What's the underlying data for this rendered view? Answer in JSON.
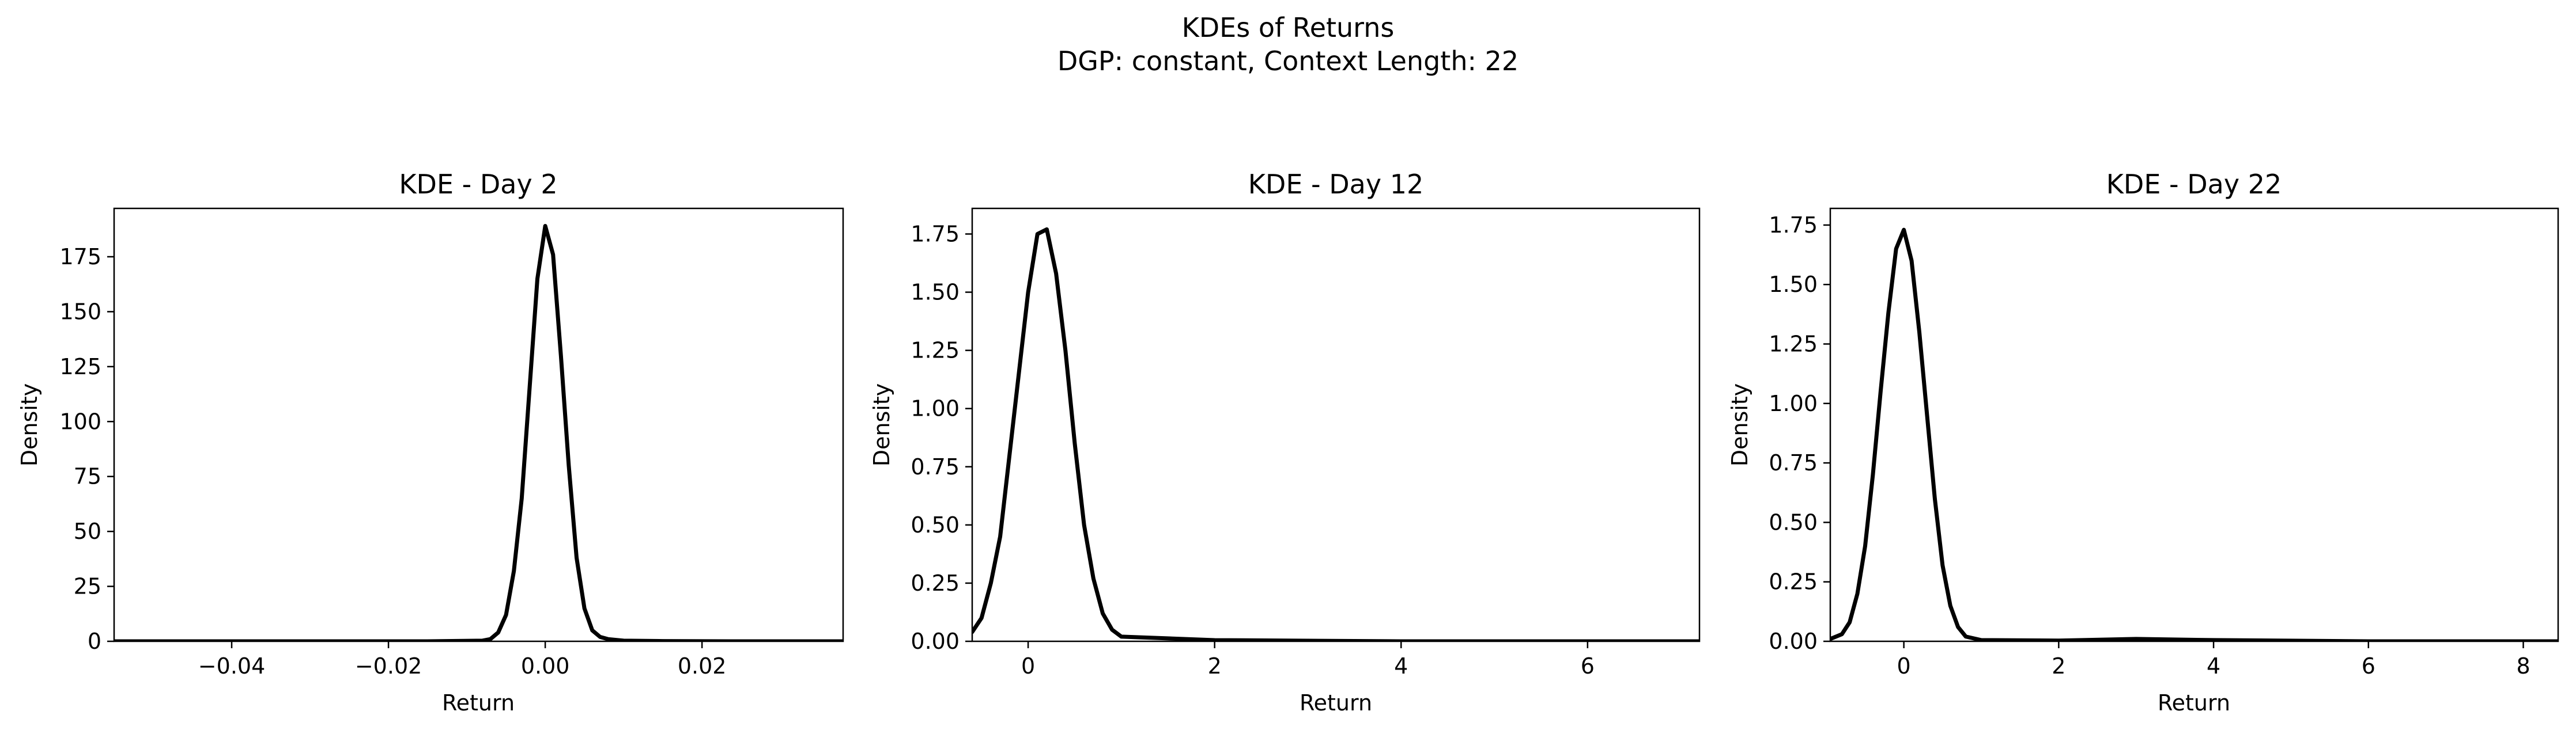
{
  "figure": {
    "title_line1": "KDEs of Returns",
    "title_line2": "DGP: constant, Context Length: 22"
  },
  "colors": {
    "line": "#000000"
  },
  "chart_data": [
    {
      "type": "line",
      "title": "KDE - Day 2",
      "xlabel": "Return",
      "ylabel": "Density",
      "xlim": [
        -0.055,
        0.038
      ],
      "ylim": [
        0,
        197
      ],
      "xticks": [
        -0.04,
        -0.02,
        0.0,
        0.02
      ],
      "xtick_labels": [
        "−0.04",
        "−0.02",
        "0.00",
        "0.02"
      ],
      "yticks": [
        0,
        25,
        50,
        75,
        100,
        125,
        150,
        175
      ],
      "ytick_labels": [
        "0",
        "25",
        "50",
        "75",
        "100",
        "125",
        "150",
        "175"
      ],
      "grid": false,
      "series": [
        {
          "x": [
            -0.055,
            -0.03,
            -0.015,
            -0.008,
            -0.007,
            -0.006,
            -0.005,
            -0.004,
            -0.003,
            -0.002,
            -0.001,
            0.0,
            0.001,
            0.002,
            0.003,
            0.004,
            0.005,
            0.006,
            0.007,
            0.008,
            0.01,
            0.015,
            0.025,
            0.038
          ],
          "y": [
            0,
            0,
            0,
            0.3,
            1,
            4,
            12,
            32,
            65,
            115,
            165,
            189,
            176,
            130,
            80,
            38,
            15,
            5,
            2,
            1,
            0.3,
            0.1,
            0,
            0
          ]
        }
      ]
    },
    {
      "type": "line",
      "title": "KDE - Day 12",
      "xlabel": "Return",
      "ylabel": "Density",
      "xlim": [
        -0.6,
        7.2
      ],
      "ylim": [
        0,
        1.86
      ],
      "xticks": [
        0,
        2,
        4,
        6
      ],
      "xtick_labels": [
        "0",
        "2",
        "4",
        "6"
      ],
      "yticks": [
        0.0,
        0.25,
        0.5,
        0.75,
        1.0,
        1.25,
        1.5,
        1.75
      ],
      "ytick_labels": [
        "0.00",
        "0.25",
        "0.50",
        "0.75",
        "1.00",
        "1.25",
        "1.50",
        "1.75"
      ],
      "grid": false,
      "series": [
        {
          "x": [
            -0.6,
            -0.5,
            -0.4,
            -0.3,
            -0.2,
            -0.1,
            0.0,
            0.1,
            0.2,
            0.3,
            0.4,
            0.5,
            0.6,
            0.7,
            0.8,
            0.9,
            1.0,
            2.0,
            4.0,
            6.0,
            7.2
          ],
          "y": [
            0.04,
            0.1,
            0.25,
            0.45,
            0.8,
            1.15,
            1.5,
            1.75,
            1.77,
            1.58,
            1.25,
            0.85,
            0.5,
            0.27,
            0.12,
            0.05,
            0.02,
            0.005,
            0.0,
            0.0,
            0.0
          ]
        }
      ]
    },
    {
      "type": "line",
      "title": "KDE - Day 22",
      "xlabel": "Return",
      "ylabel": "Density",
      "xlim": [
        -0.95,
        8.45
      ],
      "ylim": [
        0,
        1.82
      ],
      "xticks": [
        0,
        2,
        4,
        6,
        8
      ],
      "xtick_labels": [
        "0",
        "2",
        "4",
        "6",
        "8"
      ],
      "yticks": [
        0.0,
        0.25,
        0.5,
        0.75,
        1.0,
        1.25,
        1.5,
        1.75
      ],
      "ytick_labels": [
        "0.00",
        "0.25",
        "0.50",
        "0.75",
        "1.00",
        "1.25",
        "1.50",
        "1.75"
      ],
      "grid": false,
      "series": [
        {
          "x": [
            -0.95,
            -0.8,
            -0.7,
            -0.6,
            -0.5,
            -0.4,
            -0.3,
            -0.2,
            -0.1,
            0.0,
            0.1,
            0.2,
            0.3,
            0.4,
            0.5,
            0.6,
            0.7,
            0.8,
            1.0,
            2.0,
            3.0,
            4.0,
            6.0,
            8.45
          ],
          "y": [
            0.01,
            0.03,
            0.08,
            0.2,
            0.4,
            0.7,
            1.05,
            1.38,
            1.65,
            1.73,
            1.6,
            1.3,
            0.95,
            0.6,
            0.32,
            0.15,
            0.06,
            0.02,
            0.005,
            0.003,
            0.01,
            0.005,
            0.0,
            0.0
          ]
        }
      ]
    }
  ]
}
